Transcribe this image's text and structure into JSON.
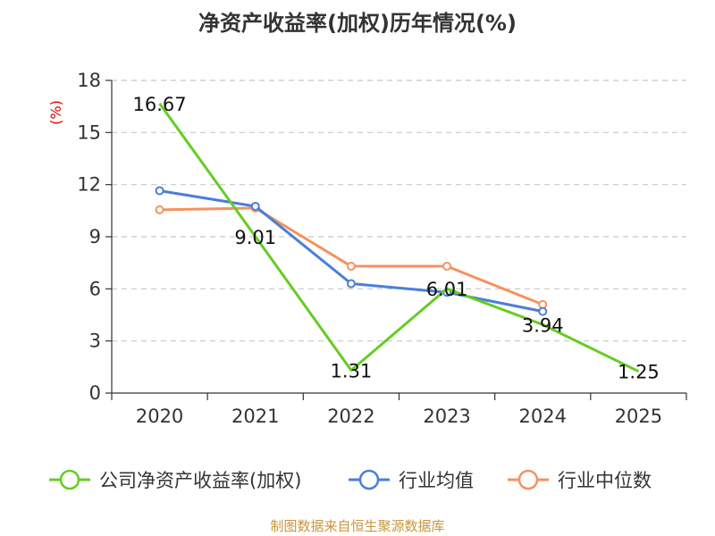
{
  "chart_data": {
    "type": "line",
    "title": "净资产收益率(加权)历年情况(%)",
    "ylabel": "(%)",
    "xlabel": "",
    "ylim": [
      0,
      18
    ],
    "yticks": [
      0,
      3,
      6,
      9,
      12,
      15,
      18
    ],
    "categories": [
      "2020",
      "2021",
      "2022",
      "2023",
      "2024",
      "2025"
    ],
    "series": [
      {
        "name": "公司净资产收益率(加权)",
        "color": "#66cc22",
        "values": [
          16.67,
          9.01,
          1.31,
          6.01,
          3.94,
          1.25
        ],
        "labels": [
          "16.67",
          "9.01",
          "1.31",
          "6.01",
          "3.94",
          "1.25"
        ]
      },
      {
        "name": "行业均值",
        "color": "#4a7fd9",
        "values": [
          11.65,
          10.75,
          6.3,
          5.8,
          4.7,
          null
        ]
      },
      {
        "name": "行业中位数",
        "color": "#f59260",
        "values": [
          10.55,
          10.65,
          7.3,
          7.3,
          5.1,
          null
        ]
      }
    ],
    "legend_position": "bottom",
    "grid": true
  },
  "source_text": "制图数据来自恒生聚源数据库"
}
